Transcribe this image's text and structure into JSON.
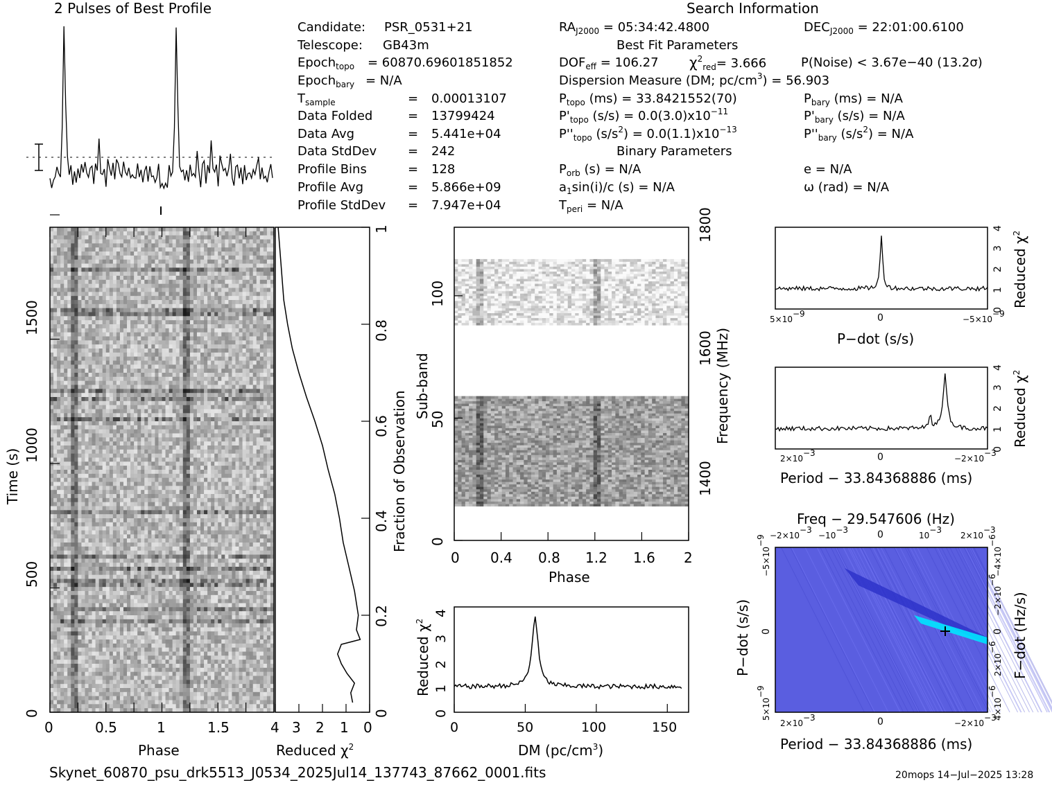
{
  "profile": {
    "title": "2 Pulses of Best Profile",
    "values": [
      0.05,
      0.02,
      0.04,
      0.03,
      0.12,
      0.08,
      0.1,
      0.35,
      1.0,
      0.5,
      0.18,
      0.1,
      0.12,
      0.05,
      0.1,
      0.06,
      0.15,
      0.04,
      0.12,
      0.07,
      0.2,
      0.1,
      0.05,
      0.14,
      0.16,
      0.04,
      0.12,
      0.08,
      0.32,
      0.1,
      0.06,
      0.15,
      0.04,
      0.2,
      0.14,
      0.08,
      0.12,
      0.06,
      0.16,
      0.18,
      0.1,
      0.04,
      0.14,
      0.12,
      0.08,
      0.1,
      0.05,
      0.12,
      0.06,
      0.1,
      0.14,
      0.08,
      0.1,
      0.06,
      0.12,
      0.15,
      0.05,
      0.1,
      0.08,
      0.12,
      0.06,
      0.1,
      0.14,
      0.05,
      0.05,
      0.02,
      0.04,
      0.03,
      0.12,
      0.08,
      0.1,
      0.35,
      1.0,
      0.5,
      0.18,
      0.1,
      0.12,
      0.05,
      0.1,
      0.06,
      0.15,
      0.04,
      0.12,
      0.07,
      0.2,
      0.1,
      0.05,
      0.14,
      0.16,
      0.04,
      0.12,
      0.08,
      0.32,
      0.1,
      0.06,
      0.15,
      0.04,
      0.2,
      0.14,
      0.08,
      0.12,
      0.06,
      0.16,
      0.18,
      0.1,
      0.04,
      0.14,
      0.12,
      0.08,
      0.1,
      0.05,
      0.12,
      0.06,
      0.1,
      0.14,
      0.08,
      0.1,
      0.06,
      0.12,
      0.15,
      0.05,
      0.1,
      0.08,
      0.12,
      0.06,
      0.1,
      0.14,
      0.05
    ]
  },
  "search_info_title": "Search Information",
  "candidate_block": [
    {
      "label": "Candidate:",
      "value": "PSR_0531+21"
    },
    {
      "label": "Telescope:",
      "value": "GB43m"
    },
    {
      "label_main": "Epoch",
      "label_sub": "topo",
      "value": "= 60870.69601851852"
    },
    {
      "label_main": "Epoch",
      "label_sub": "bary",
      "value": "= N/A"
    },
    {
      "label_main": "T",
      "label_sub": "sample",
      "eq": "=",
      "value": "0.00013107"
    },
    {
      "label": "Data Folded",
      "eq": "=",
      "value": "13799424"
    },
    {
      "label": "Data Avg",
      "eq": "=",
      "value": "5.441e+04"
    },
    {
      "label": "Data StdDev",
      "eq": "=",
      "value": "242"
    },
    {
      "label": "Profile Bins",
      "eq": "=",
      "value": "128"
    },
    {
      "label": "Profile Avg",
      "eq": "=",
      "value": "5.866e+09"
    },
    {
      "label": "Profile StdDev",
      "eq": "=",
      "value": "7.947e+04"
    }
  ],
  "fit": {
    "ra_main": "RA",
    "ra_sub": "J2000",
    "ra_value": "= 05:34:42.4800",
    "dec_main": "DEC",
    "dec_sub": "J2000",
    "dec_value": "= 22:01:00.6100",
    "best_fit_title": "Best Fit Parameters",
    "dof_main": "DOF",
    "dof_sub": "eff",
    "dof_value": "= 106.27",
    "chi_main": "χ",
    "chi_sup": "2",
    "chi_sub": "red",
    "chi_value": "= 3.666",
    "pnoise": "P(Noise) < 3.67e−40   (13.2σ)",
    "dm_text": "Dispersion Measure (DM; pc/cm",
    "dm_sup": "3",
    "dm_value": ") = 56.903",
    "ptopo_main": "P",
    "ptopo_sub": "topo",
    "ptopo_value": " (ms) =  33.8421552(70)",
    "pbary_main": "P",
    "pbary_sub": "bary",
    "pbary_value": " (ms) = N/A",
    "pdtopo_main": "P'",
    "pdtopo_sub": "topo",
    "pdtopo_value": " (s/s) = 0.0(3.0)x10",
    "pdtopo_exp": "−11",
    "pdbary_main": "P'",
    "pdbary_sub": "bary",
    "pdbary_value": " (s/s) = N/A",
    "pddtopo_main": "P''",
    "pddtopo_sub": "topo",
    "pddtopo_value": " (s/s",
    "pddtopo_sup": "2",
    "pddtopo_value2": ") = 0.0(1.1)x10",
    "pddtopo_exp": "−13",
    "pddbary_main": "P''",
    "pddbary_sub": "bary",
    "pddbary_value": " (s/s",
    "pddbary_sup": "2",
    "pddbary_value2": ") = N/A",
    "binary_title": "Binary Parameters",
    "porb_main": "P",
    "porb_sub": "orb",
    "porb_value": " (s) = N/A",
    "e_value": "e = N/A",
    "a1_main": "a",
    "a1_sub": "1",
    "a1_value": "sin(i)/c (s) = N/A",
    "omega_value": "ω (rad) = N/A",
    "tperi_main": "T",
    "tperi_sub": "peri",
    "tperi_value": " = N/A"
  },
  "time_phase": {
    "xlabel": "Phase",
    "ylabel": "Time (s)",
    "xticks": [
      "0",
      "0.5",
      "1",
      "1.5"
    ],
    "yticks": [
      "0",
      "500",
      "1000",
      "1500"
    ]
  },
  "redchi_time": {
    "xlabel": "Reduced χ",
    "xlabel_sup": "2",
    "xticks": [
      "4",
      "3",
      "2",
      "1",
      "0"
    ],
    "right_label": "Fraction of Observation",
    "right_ticks": [
      "0",
      "0.2",
      "0.4",
      "0.6",
      "0.8",
      "1"
    ],
    "curve": [
      [
        0.82,
        0.02
      ],
      [
        0.8,
        0.04
      ],
      [
        0.84,
        0.06
      ],
      [
        0.76,
        0.08
      ],
      [
        0.7,
        0.1
      ],
      [
        0.66,
        0.12
      ],
      [
        0.7,
        0.14
      ],
      [
        0.9,
        0.15
      ],
      [
        0.86,
        0.17
      ],
      [
        0.88,
        0.2
      ],
      [
        0.84,
        0.25
      ],
      [
        0.78,
        0.3
      ],
      [
        0.72,
        0.35
      ],
      [
        0.68,
        0.4
      ],
      [
        0.63,
        0.45
      ],
      [
        0.56,
        0.5
      ],
      [
        0.5,
        0.55
      ],
      [
        0.42,
        0.6
      ],
      [
        0.33,
        0.65
      ],
      [
        0.25,
        0.7
      ],
      [
        0.18,
        0.75
      ],
      [
        0.13,
        0.8
      ],
      [
        0.09,
        0.85
      ],
      [
        0.07,
        0.9
      ],
      [
        0.05,
        0.95
      ],
      [
        0.03,
        1.0
      ]
    ]
  },
  "subband": {
    "xlabel": "Phase",
    "ylabel": "Sub-band",
    "xticks": [
      "0",
      "0.4",
      "0.8",
      "1.2",
      "1.6",
      "2"
    ],
    "yticks": [
      "0",
      "50",
      "100"
    ],
    "right_label": "Frequency (MHz)",
    "right_ticks": [
      "1400",
      "1600",
      "1800"
    ]
  },
  "dm_chart": {
    "xlabel": "DM (pc/cm",
    "xlabel_sup": "3",
    "xlabel_end": ")",
    "ylabel": "Reduced χ",
    "ylabel_sup": "2",
    "xticks": [
      "0",
      "50",
      "100",
      "150"
    ],
    "yticks": [
      "0",
      "1",
      "2",
      "3",
      "4"
    ]
  },
  "pdot_chart": {
    "xlabel": "P−dot (s/s)",
    "xticks": [
      "5×10",
      "0",
      "−5×10"
    ],
    "xtick_exps": [
      "−9",
      "",
      "−9"
    ],
    "right_label": "Reduced χ",
    "right_sup": "2",
    "yticks": [
      "0",
      "1",
      "2",
      "3",
      "4"
    ]
  },
  "period_chart": {
    "xlabel": "Period − 33.84368886 (ms)",
    "xticks": [
      "2×10",
      "0",
      "−2×10"
    ],
    "xtick_exps": [
      "−3",
      "",
      "−3"
    ],
    "right_label": "Reduced χ",
    "right_sup": "2",
    "yticks": [
      "0",
      "1",
      "2",
      "3",
      "4"
    ]
  },
  "pp_chart": {
    "top_title": "Freq − 29.547606 (Hz)",
    "top_ticks": [
      "−2×10",
      "−10",
      "0",
      "10",
      "2×10"
    ],
    "top_exps": [
      "−3",
      "−3",
      "",
      "−3",
      "−3"
    ],
    "xlabel": "Period − 33.84368886 (ms)",
    "xticks": [
      "2×10",
      "0",
      "−2×10"
    ],
    "xtick_exps": [
      "−3",
      "",
      "−3"
    ],
    "ylabel": "P−dot (s/s)",
    "yticks": [
      "−5×10",
      "0",
      "5×10"
    ],
    "ytick_exps": [
      "−9",
      "",
      "−9"
    ],
    "right_label": "F−dot (Hz/s)",
    "right_ticks": [
      "4×10",
      "2×10",
      "0",
      "−2×10",
      "−4×10"
    ],
    "right_exps": [
      "−6",
      "−6",
      "",
      "−6",
      "−6"
    ]
  },
  "footer": {
    "filename": "Skynet_60870_psu_drk5513_J0534_2025Jul14_137743_87662_0001.fits",
    "stamp": "20mops  14−Jul−2025 13:28"
  },
  "colors": {
    "ink": "#000000",
    "pp_bg": "#5a5ee0",
    "pp_peak": "#00e5ff"
  }
}
